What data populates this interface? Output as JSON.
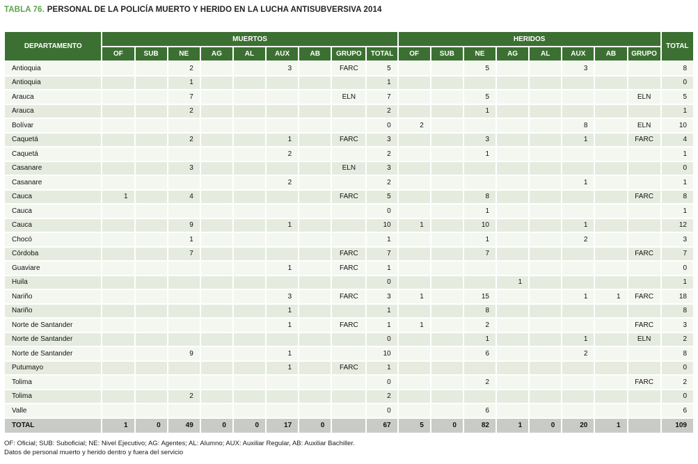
{
  "title": {
    "number": "TABLA 76.",
    "text": "PERSONAL DE LA POLICÍA MUERTO Y HERIDO EN LA LUCHA ANTISUBVERSIVA 2014"
  },
  "colors": {
    "header_green": "#3c7032",
    "title_green": "#59a348",
    "row_light": "#f4f7f0",
    "row_dark": "#e5ecdf",
    "total_row_bg": "#c9ccc6"
  },
  "table": {
    "dept_header": "DEPARTAMENTO",
    "muertos_header": "MUERTOS",
    "heridos_header": "HERIDOS",
    "right_total_header": "TOTAL",
    "muertos_subcols": [
      "OF",
      "SUB",
      "NE",
      "AG",
      "AL",
      "AUX",
      "AB",
      "GRUPO",
      "TOTAL"
    ],
    "heridos_subcols": [
      "OF",
      "SUB",
      "NE",
      "AG",
      "AL",
      "AUX",
      "AB",
      "GRUPO"
    ],
    "rows": [
      {
        "dept": "Antioquia",
        "m": [
          "",
          "",
          "2",
          "",
          "",
          "3",
          "",
          "FARC",
          "5"
        ],
        "h": [
          "",
          "",
          "5",
          "",
          "",
          "3",
          "",
          ""
        ],
        "total": "8"
      },
      {
        "dept": "Antioquia",
        "m": [
          "",
          "",
          "1",
          "",
          "",
          "",
          "",
          "",
          "1"
        ],
        "h": [
          "",
          "",
          "",
          "",
          "",
          "",
          "",
          ""
        ],
        "total": "0"
      },
      {
        "dept": "Arauca",
        "m": [
          "",
          "",
          "7",
          "",
          "",
          "",
          "",
          "ELN",
          "7"
        ],
        "h": [
          "",
          "",
          "5",
          "",
          "",
          "",
          "",
          "ELN"
        ],
        "total": "5"
      },
      {
        "dept": "Arauca",
        "m": [
          "",
          "",
          "2",
          "",
          "",
          "",
          "",
          "",
          "2"
        ],
        "h": [
          "",
          "",
          "1",
          "",
          "",
          "",
          "",
          ""
        ],
        "total": "1"
      },
      {
        "dept": "Bolívar",
        "m": [
          "",
          "",
          "",
          "",
          "",
          "",
          "",
          "",
          "0"
        ],
        "h": [
          "2",
          "",
          "",
          "",
          "",
          "8",
          "",
          "ELN"
        ],
        "total": "10"
      },
      {
        "dept": "Caquetá",
        "m": [
          "",
          "",
          "2",
          "",
          "",
          "1",
          "",
          "FARC",
          "3"
        ],
        "h": [
          "",
          "",
          "3",
          "",
          "",
          "1",
          "",
          "FARC"
        ],
        "total": "4"
      },
      {
        "dept": "Caquetá",
        "m": [
          "",
          "",
          "",
          "",
          "",
          "2",
          "",
          "",
          "2"
        ],
        "h": [
          "",
          "",
          "1",
          "",
          "",
          "",
          "",
          ""
        ],
        "total": "1"
      },
      {
        "dept": "Casanare",
        "m": [
          "",
          "",
          "3",
          "",
          "",
          "",
          "",
          "ELN",
          "3"
        ],
        "h": [
          "",
          "",
          "",
          "",
          "",
          "",
          "",
          ""
        ],
        "total": "0"
      },
      {
        "dept": "Casanare",
        "m": [
          "",
          "",
          "",
          "",
          "",
          "2",
          "",
          "",
          "2"
        ],
        "h": [
          "",
          "",
          "",
          "",
          "",
          "1",
          "",
          ""
        ],
        "total": "1"
      },
      {
        "dept": "Cauca",
        "m": [
          "1",
          "",
          "4",
          "",
          "",
          "",
          "",
          "FARC",
          "5"
        ],
        "h": [
          "",
          "",
          "8",
          "",
          "",
          "",
          "",
          "FARC"
        ],
        "total": "8"
      },
      {
        "dept": "Cauca",
        "m": [
          "",
          "",
          "",
          "",
          "",
          "",
          "",
          "",
          "0"
        ],
        "h": [
          "",
          "",
          "1",
          "",
          "",
          "",
          "",
          ""
        ],
        "total": "1"
      },
      {
        "dept": "Cauca",
        "m": [
          "",
          "",
          "9",
          "",
          "",
          "1",
          "",
          "",
          "10"
        ],
        "h": [
          "1",
          "",
          "10",
          "",
          "",
          "1",
          "",
          ""
        ],
        "total": "12"
      },
      {
        "dept": "Chocó",
        "m": [
          "",
          "",
          "1",
          "",
          "",
          "",
          "",
          "",
          "1"
        ],
        "h": [
          "",
          "",
          "1",
          "",
          "",
          "2",
          "",
          ""
        ],
        "total": "3"
      },
      {
        "dept": "Córdoba",
        "m": [
          "",
          "",
          "7",
          "",
          "",
          "",
          "",
          "FARC",
          "7"
        ],
        "h": [
          "",
          "",
          "7",
          "",
          "",
          "",
          "",
          "FARC"
        ],
        "total": "7"
      },
      {
        "dept": "Guaviare",
        "m": [
          "",
          "",
          "",
          "",
          "",
          "1",
          "",
          "FARC",
          "1"
        ],
        "h": [
          "",
          "",
          "",
          "",
          "",
          "",
          "",
          ""
        ],
        "total": "0"
      },
      {
        "dept": "Huila",
        "m": [
          "",
          "",
          "",
          "",
          "",
          "",
          "",
          "",
          "0"
        ],
        "h": [
          "",
          "",
          "",
          "1",
          "",
          "",
          "",
          ""
        ],
        "total": "1"
      },
      {
        "dept": "Nariño",
        "m": [
          "",
          "",
          "",
          "",
          "",
          "3",
          "",
          "FARC",
          "3"
        ],
        "h": [
          "1",
          "",
          "15",
          "",
          "",
          "1",
          "1",
          "FARC"
        ],
        "total": "18"
      },
      {
        "dept": "Nariño",
        "m": [
          "",
          "",
          "",
          "",
          "",
          "1",
          "",
          "",
          "1"
        ],
        "h": [
          "",
          "",
          "8",
          "",
          "",
          "",
          "",
          ""
        ],
        "total": "8"
      },
      {
        "dept": "Norte de Santander",
        "m": [
          "",
          "",
          "",
          "",
          "",
          "1",
          "",
          "FARC",
          "1"
        ],
        "h": [
          "1",
          "",
          "2",
          "",
          "",
          "",
          "",
          "FARC"
        ],
        "total": "3"
      },
      {
        "dept": "Norte de Santander",
        "m": [
          "",
          "",
          "",
          "",
          "",
          "",
          "",
          "",
          "0"
        ],
        "h": [
          "",
          "",
          "1",
          "",
          "",
          "1",
          "",
          "ELN"
        ],
        "total": "2"
      },
      {
        "dept": "Norte de Santander",
        "m": [
          "",
          "",
          "9",
          "",
          "",
          "1",
          "",
          "",
          "10"
        ],
        "h": [
          "",
          "",
          "6",
          "",
          "",
          "2",
          "",
          ""
        ],
        "total": "8"
      },
      {
        "dept": "Putumayo",
        "m": [
          "",
          "",
          "",
          "",
          "",
          "1",
          "",
          "FARC",
          "1"
        ],
        "h": [
          "",
          "",
          "",
          "",
          "",
          "",
          "",
          ""
        ],
        "total": "0"
      },
      {
        "dept": "Tolima",
        "m": [
          "",
          "",
          "",
          "",
          "",
          "",
          "",
          "",
          "0"
        ],
        "h": [
          "",
          "",
          "2",
          "",
          "",
          "",
          "",
          "FARC"
        ],
        "total": "2"
      },
      {
        "dept": "Tolima",
        "m": [
          "",
          "",
          "2",
          "",
          "",
          "",
          "",
          "",
          "2"
        ],
        "h": [
          "",
          "",
          "",
          "",
          "",
          "",
          "",
          ""
        ],
        "total": "0"
      },
      {
        "dept": "Valle",
        "m": [
          "",
          "",
          "",
          "",
          "",
          "",
          "",
          "",
          "0"
        ],
        "h": [
          "",
          "",
          "6",
          "",
          "",
          "",
          "",
          ""
        ],
        "total": "6"
      }
    ],
    "total_row": {
      "label": "TOTAL",
      "m": [
        "1",
        "0",
        "49",
        "0",
        "0",
        "17",
        "0",
        "",
        "67"
      ],
      "h": [
        "5",
        "0",
        "82",
        "1",
        "0",
        "20",
        "1",
        ""
      ],
      "total": "109"
    }
  },
  "footnotes": [
    "OF: Oficial; SUB: Suboficial; NE: Nivel Ejecutivo; AG: Agentes; AL: Alumno; AUX: Auxiliar Regular, AB: Auxiliar Bachiller.",
    "Datos de personal muerto y herido dentro y fuera del servicio"
  ]
}
